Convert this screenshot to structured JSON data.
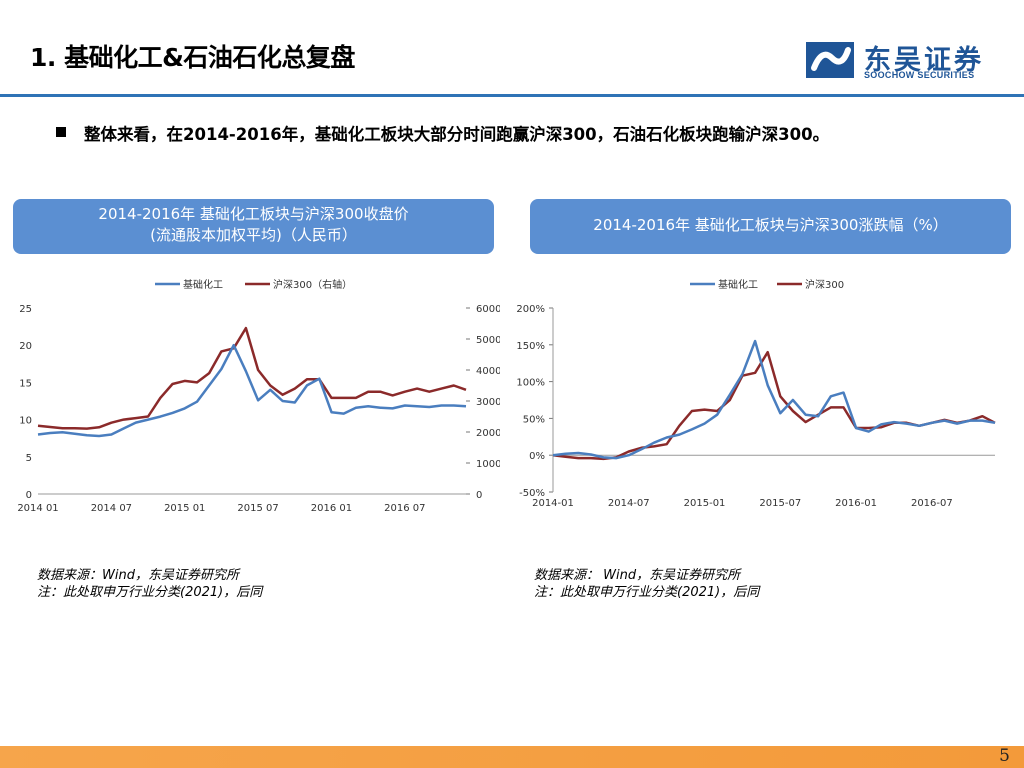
{
  "title": "1. 基础化工&石油石化总复盘",
  "logo": {
    "cn": "东吴证券",
    "en": "SOOCHOW SECURITIES"
  },
  "bullet": "整体来看，在2014-2016年，基础化工板块大部分时间跑赢沪深300，石油石化板块跑输沪深300。",
  "chip1": {
    "line1": "2014-2016年 基础化工板块与沪深300收盘价",
    "line2": "(流通股本加权平均)（人民币）"
  },
  "chip2": {
    "line1": "2014-2016年 基础化工板块与沪深300涨跌幅（%）"
  },
  "source1": {
    "line1": "数据来源：Wind，东吴证券研究所",
    "line2": "注：此处取申万行业分类(2021)，后同"
  },
  "source2": {
    "line1": "数据来源： Wind，东吴证券研究所",
    "line2": "注：此处取申万行业分类(2021)，后同"
  },
  "page_number": "5",
  "colors": {
    "series_chem": "#4a7ebf",
    "series_hs300": "#8b2a2a",
    "accent": "#2e73b6",
    "chip": "#5b8fd2",
    "footer": "#f5a145"
  },
  "chart_data": [
    {
      "type": "line",
      "legend_position": "top",
      "x": [
        "2014-01",
        "2014-02",
        "2014-03",
        "2014-04",
        "2014-05",
        "2014-06",
        "2014-07",
        "2014-08",
        "2014-09",
        "2014-10",
        "2014-11",
        "2014-12",
        "2015-01",
        "2015-02",
        "2015-03",
        "2015-04",
        "2015-05",
        "2015-06",
        "2015-07",
        "2015-08",
        "2015-09",
        "2015-10",
        "2015-11",
        "2015-12",
        "2016-01",
        "2016-02",
        "2016-03",
        "2016-04",
        "2016-05",
        "2016-06",
        "2016-07",
        "2016-08",
        "2016-09",
        "2016-10",
        "2016-11",
        "2016-12"
      ],
      "x_ticks": [
        "2014 01",
        "2014 07",
        "2015 01",
        "2015 07",
        "2016 01",
        "2016 07"
      ],
      "x_tick_index": [
        0,
        6,
        12,
        18,
        24,
        30
      ],
      "series": [
        {
          "name": "基础化工",
          "axis": "left",
          "values": [
            8.0,
            8.2,
            8.3,
            8.1,
            7.9,
            7.8,
            8.0,
            8.8,
            9.6,
            10.0,
            10.4,
            10.9,
            11.5,
            12.4,
            14.6,
            16.8,
            20.0,
            16.5,
            12.6,
            14.0,
            12.5,
            12.3,
            14.6,
            15.5,
            11.0,
            10.8,
            11.6,
            11.8,
            11.6,
            11.5,
            11.9,
            11.8,
            11.7,
            11.9,
            11.9,
            11.8
          ]
        },
        {
          "name": "沪深300（右轴）",
          "axis": "right",
          "values": [
            2200,
            2160,
            2120,
            2120,
            2110,
            2150,
            2300,
            2400,
            2450,
            2500,
            3100,
            3550,
            3650,
            3600,
            3900,
            4600,
            4700,
            5350,
            4000,
            3500,
            3200,
            3400,
            3700,
            3700,
            3100,
            3100,
            3100,
            3300,
            3300,
            3180,
            3300,
            3400,
            3300,
            3400,
            3500,
            3360
          ]
        }
      ],
      "y_left": {
        "ylim": [
          0,
          25
        ],
        "ticks": [
          0,
          5,
          10,
          15,
          20,
          25
        ]
      },
      "y_right": {
        "ylim": [
          0,
          6000
        ],
        "ticks": [
          0,
          1000,
          2000,
          3000,
          4000,
          5000,
          6000
        ]
      }
    },
    {
      "type": "line",
      "legend_position": "top",
      "x": [
        "2014-01",
        "2014-02",
        "2014-03",
        "2014-04",
        "2014-05",
        "2014-06",
        "2014-07",
        "2014-08",
        "2014-09",
        "2014-10",
        "2014-11",
        "2014-12",
        "2015-01",
        "2015-02",
        "2015-03",
        "2015-04",
        "2015-05",
        "2015-06",
        "2015-07",
        "2015-08",
        "2015-09",
        "2015-10",
        "2015-11",
        "2015-12",
        "2016-01",
        "2016-02",
        "2016-03",
        "2016-04",
        "2016-05",
        "2016-06",
        "2016-07",
        "2016-08",
        "2016-09",
        "2016-10",
        "2016-11",
        "2016-12"
      ],
      "x_ticks": [
        "2014-01",
        "2014-07",
        "2015-01",
        "2015-07",
        "2016-01",
        "2016-07"
      ],
      "x_tick_index": [
        0,
        6,
        12,
        18,
        24,
        30
      ],
      "series": [
        {
          "name": "基础化工",
          "values": [
            0,
            2,
            3,
            1,
            -3,
            -4,
            0,
            8,
            17,
            24,
            28,
            35,
            43,
            55,
            82,
            110,
            155,
            95,
            57,
            75,
            55,
            53,
            80,
            85,
            37,
            32,
            42,
            45,
            43,
            40,
            44,
            47,
            43,
            47,
            47,
            44
          ]
        },
        {
          "name": "沪深300",
          "values": [
            0,
            -2,
            -4,
            -4,
            -5,
            -3,
            5,
            10,
            12,
            15,
            40,
            60,
            62,
            60,
            75,
            108,
            112,
            140,
            80,
            60,
            45,
            55,
            65,
            65,
            37,
            37,
            38,
            44,
            44,
            40,
            44,
            48,
            44,
            47,
            53,
            44
          ]
        }
      ],
      "ylim": [
        -50,
        200
      ],
      "y_ticks": [
        "-50%",
        "0%",
        "50%",
        "100%",
        "150%",
        "200%"
      ],
      "y_tick_values": [
        -50,
        0,
        50,
        100,
        150,
        200
      ]
    }
  ]
}
